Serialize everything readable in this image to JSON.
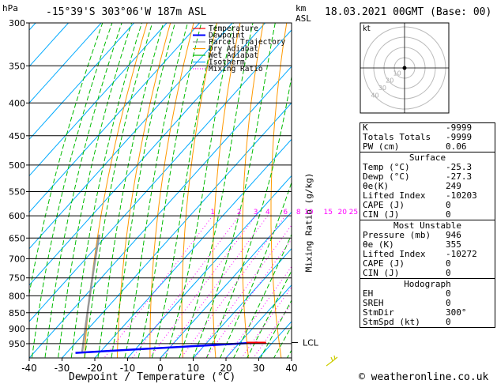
{
  "header": {
    "hpa_label": "hPa",
    "location": "-15°39'S 303°06'W 187m ASL",
    "km_label": "km",
    "asl_label": "ASL",
    "datetime": "18.03.2021 00GMT (Base: 00)",
    "kt_label": "kt"
  },
  "colors": {
    "temperature": "#ff0000",
    "dewpoint": "#0000ff",
    "parcel": "#999999",
    "dry_adiabat": "#ff9900",
    "wet_adiabat": "#00bb00",
    "isotherm": "#00aaff",
    "mixing_ratio": "#ff00ff"
  },
  "legend": [
    {
      "label": "Temperature",
      "color": "#ff0000",
      "style": "solid"
    },
    {
      "label": "Dewpoint",
      "color": "#0000ff",
      "style": "solid"
    },
    {
      "label": "Parcel Trajectory",
      "color": "#999999",
      "style": "solid"
    },
    {
      "label": "Dry Adiabat",
      "color": "#ff9900",
      "style": "solid"
    },
    {
      "label": "Wet Adiabat",
      "color": "#00bb00",
      "style": "solid"
    },
    {
      "label": "Isotherm",
      "color": "#00aaff",
      "style": "solid"
    },
    {
      "label": "Mixing Ratio",
      "color": "#ff00ff",
      "style": "dotted"
    }
  ],
  "chart_data": {
    "type": "line",
    "xlabel": "Dewpoint / Temperature (°C)",
    "ylabel_right": "Mixing Ratio (g/kg)",
    "pressure_levels": [
      300,
      350,
      400,
      450,
      500,
      550,
      600,
      650,
      700,
      750,
      800,
      850,
      900,
      950
    ],
    "x_ticks": [
      -40,
      -30,
      -20,
      -10,
      0,
      10,
      20,
      30,
      40
    ],
    "xlim": [
      -40,
      40
    ],
    "ylim": [
      300,
      1000
    ],
    "mixing_ratio_labels": [
      "1",
      "2",
      "3",
      "4",
      "6",
      "8",
      "10",
      "15",
      "20",
      "25"
    ],
    "mixing_ratio_values": [
      1,
      2,
      3,
      4,
      6,
      8,
      10,
      15,
      20,
      25
    ],
    "lcl_label": "LCL",
    "lcl_pressure": 946,
    "temperature_series": [
      {
        "p": 946,
        "t": 28.0
      },
      {
        "p": 946,
        "t": 22.0
      }
    ],
    "dewpoint_series": [
      {
        "p": 982,
        "t": -27.3
      },
      {
        "p": 946,
        "t": 25.3
      }
    ]
  },
  "hodograph": {
    "ring_labels": [
      "10",
      "20",
      "30",
      "40"
    ]
  },
  "indices": {
    "rows": [
      {
        "label": "K",
        "value": "-9999"
      },
      {
        "label": "Totals Totals",
        "value": "-9999"
      },
      {
        "label": "PW (cm)",
        "value": "0.06"
      }
    ]
  },
  "surface": {
    "title": "Surface",
    "rows": [
      {
        "label": "Temp (°C)",
        "value": "-25.3"
      },
      {
        "label": "Dewp (°C)",
        "value": "-27.3"
      },
      {
        "label": "θe(K)",
        "value": "249"
      },
      {
        "label": "Lifted Index",
        "value": "-10203"
      },
      {
        "label": "CAPE (J)",
        "value": "0"
      },
      {
        "label": "CIN (J)",
        "value": "0"
      }
    ]
  },
  "most_unstable": {
    "title": "Most Unstable",
    "rows": [
      {
        "label": "Pressure (mb)",
        "value": "946"
      },
      {
        "label": "θe (K)",
        "value": "355"
      },
      {
        "label": "Lifted Index",
        "value": "-10272"
      },
      {
        "label": "CAPE (J)",
        "value": "0"
      },
      {
        "label": "CIN (J)",
        "value": "0"
      }
    ]
  },
  "hodograph_table": {
    "title": "Hodograph",
    "rows": [
      {
        "label": "EH",
        "value": "0"
      },
      {
        "label": "SREH",
        "value": "0"
      },
      {
        "label": "StmDir",
        "value": "300°"
      },
      {
        "label": "StmSpd (kt)",
        "value": "0"
      }
    ]
  },
  "footer": {
    "copyright": "© weatheronline.co.uk"
  }
}
